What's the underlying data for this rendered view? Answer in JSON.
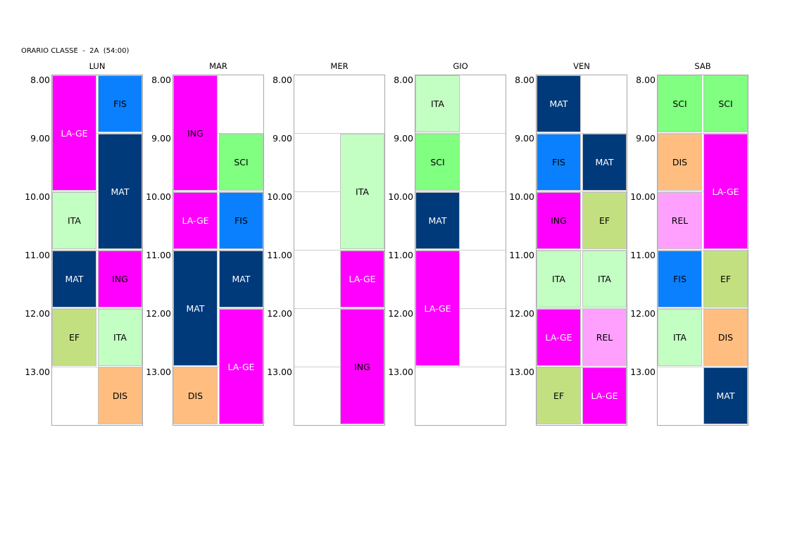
{
  "title": "ORARIO CLASSE  -  2A  (54:00)",
  "times": [
    "8.00",
    "9.00",
    "10.00",
    "11.00",
    "12.00",
    "13.00"
  ],
  "colors": {
    "MAT": "#003a7a",
    "ITA": "#c3ffc3",
    "LA-GE": "#ff00ff",
    "FIS": "#0a80ff",
    "ING": "#ff00ff",
    "SCI": "#80ff80",
    "EF": "#c3e080",
    "DIS": "#ffbe80",
    "REL": "#ffa0ff"
  },
  "text_colors": {
    "MAT": "#ffffff",
    "ITA": "#000000",
    "LA-GE": "#ffffff",
    "FIS": "#000000",
    "ING": "#000000",
    "SCI": "#000000",
    "EF": "#000000",
    "DIS": "#000000",
    "REL": "#000000"
  },
  "days": [
    {
      "name": "LUN",
      "lessons": [
        {
          "subject": "LA-GE",
          "col": 0,
          "start": 0,
          "span": 2
        },
        {
          "subject": "FIS",
          "col": 1,
          "start": 0,
          "span": 1
        },
        {
          "subject": "MAT",
          "col": 1,
          "start": 1,
          "span": 2
        },
        {
          "subject": "ITA",
          "col": 0,
          "start": 2,
          "span": 1
        },
        {
          "subject": "MAT",
          "col": 0,
          "start": 3,
          "span": 1
        },
        {
          "subject": "ING",
          "col": 1,
          "start": 3,
          "span": 1
        },
        {
          "subject": "EF",
          "col": 0,
          "start": 4,
          "span": 1
        },
        {
          "subject": "ITA",
          "col": 1,
          "start": 4,
          "span": 1
        },
        {
          "subject": "DIS",
          "col": 1,
          "start": 5,
          "span": 1
        }
      ]
    },
    {
      "name": "MAR",
      "lessons": [
        {
          "subject": "ING",
          "col": 0,
          "start": 0,
          "span": 2
        },
        {
          "subject": "SCI",
          "col": 1,
          "start": 1,
          "span": 1
        },
        {
          "subject": "LA-GE",
          "col": 0,
          "start": 2,
          "span": 1
        },
        {
          "subject": "FIS",
          "col": 1,
          "start": 2,
          "span": 1
        },
        {
          "subject": "MAT",
          "col": 0,
          "start": 3,
          "span": 2
        },
        {
          "subject": "MAT",
          "col": 1,
          "start": 3,
          "span": 1
        },
        {
          "subject": "LA-GE",
          "col": 1,
          "start": 4,
          "span": 2
        },
        {
          "subject": "DIS",
          "col": 0,
          "start": 5,
          "span": 1
        }
      ]
    },
    {
      "name": "MER",
      "lessons": [
        {
          "subject": "ITA",
          "col": 1,
          "start": 1,
          "span": 2
        },
        {
          "subject": "LA-GE",
          "col": 1,
          "start": 3,
          "span": 1
        },
        {
          "subject": "ING",
          "col": 1,
          "start": 4,
          "span": 2
        }
      ]
    },
    {
      "name": "GIO",
      "lessons": [
        {
          "subject": "ITA",
          "col": 0,
          "start": 0,
          "span": 1
        },
        {
          "subject": "SCI",
          "col": 0,
          "start": 1,
          "span": 1
        },
        {
          "subject": "MAT",
          "col": 0,
          "start": 2,
          "span": 1
        },
        {
          "subject": "LA-GE",
          "col": 0,
          "start": 3,
          "span": 2
        }
      ]
    },
    {
      "name": "VEN",
      "lessons": [
        {
          "subject": "MAT",
          "col": 0,
          "start": 0,
          "span": 1
        },
        {
          "subject": "FIS",
          "col": 0,
          "start": 1,
          "span": 1
        },
        {
          "subject": "MAT",
          "col": 1,
          "start": 1,
          "span": 1
        },
        {
          "subject": "ING",
          "col": 0,
          "start": 2,
          "span": 1
        },
        {
          "subject": "EF",
          "col": 1,
          "start": 2,
          "span": 1
        },
        {
          "subject": "ITA",
          "col": 0,
          "start": 3,
          "span": 1
        },
        {
          "subject": "ITA",
          "col": 1,
          "start": 3,
          "span": 1
        },
        {
          "subject": "LA-GE",
          "col": 0,
          "start": 4,
          "span": 1
        },
        {
          "subject": "REL",
          "col": 1,
          "start": 4,
          "span": 1
        },
        {
          "subject": "EF",
          "col": 0,
          "start": 5,
          "span": 1
        },
        {
          "subject": "LA-GE",
          "col": 1,
          "start": 5,
          "span": 1
        }
      ]
    },
    {
      "name": "SAB",
      "lessons": [
        {
          "subject": "SCI",
          "col": 0,
          "start": 0,
          "span": 1
        },
        {
          "subject": "SCI",
          "col": 1,
          "start": 0,
          "span": 1
        },
        {
          "subject": "DIS",
          "col": 0,
          "start": 1,
          "span": 1
        },
        {
          "subject": "LA-GE",
          "col": 1,
          "start": 1,
          "span": 2
        },
        {
          "subject": "REL",
          "col": 0,
          "start": 2,
          "span": 1
        },
        {
          "subject": "FIS",
          "col": 0,
          "start": 3,
          "span": 1
        },
        {
          "subject": "EF",
          "col": 1,
          "start": 3,
          "span": 1
        },
        {
          "subject": "ITA",
          "col": 0,
          "start": 4,
          "span": 1
        },
        {
          "subject": "DIS",
          "col": 1,
          "start": 4,
          "span": 1
        },
        {
          "subject": "MAT",
          "col": 1,
          "start": 5,
          "span": 1
        }
      ]
    }
  ]
}
